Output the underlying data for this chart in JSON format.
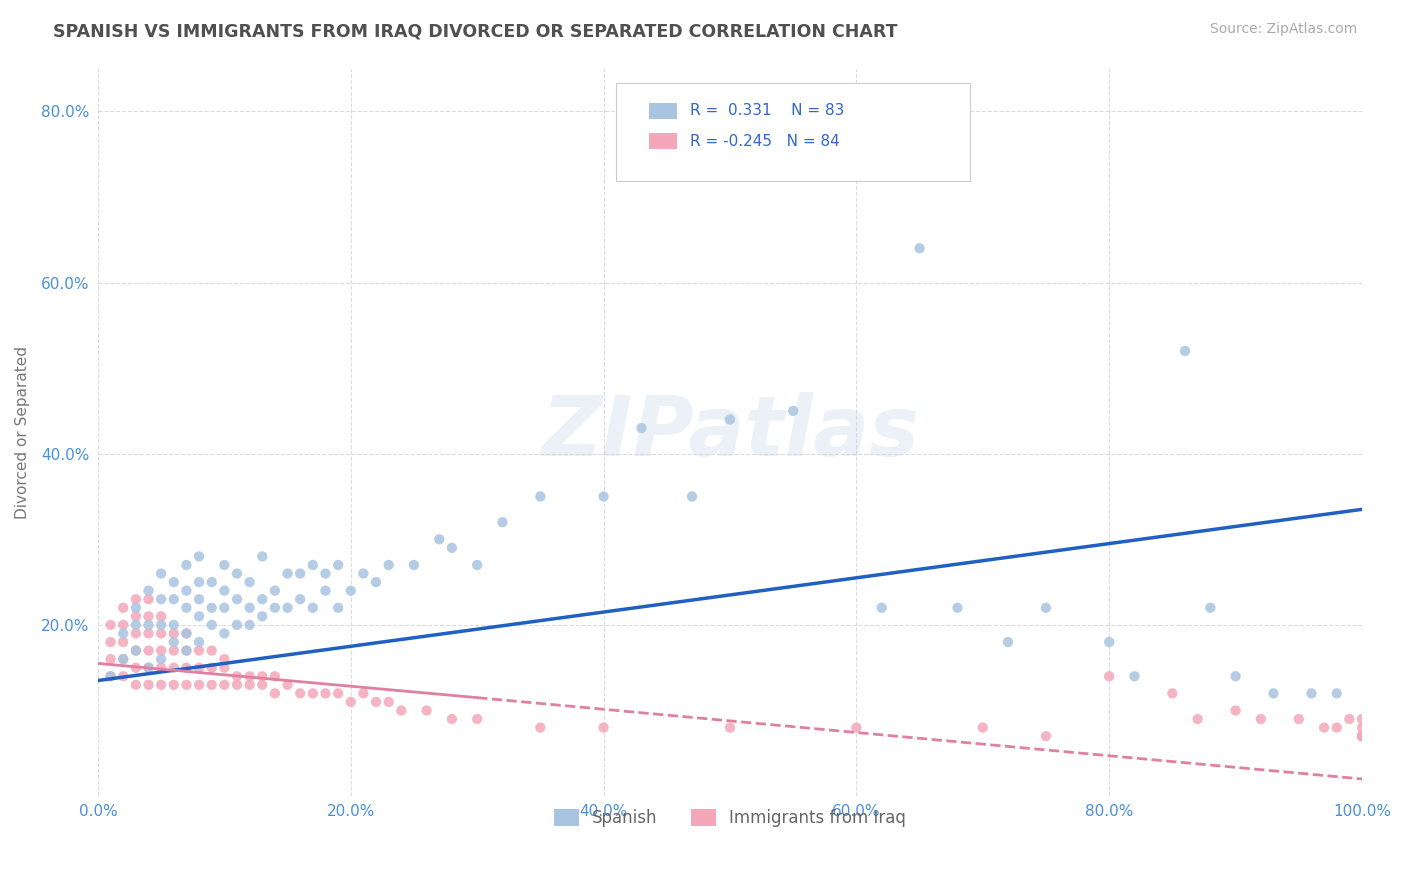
{
  "title": "SPANISH VS IMMIGRANTS FROM IRAQ DIVORCED OR SEPARATED CORRELATION CHART",
  "source": "Source: ZipAtlas.com",
  "xlabel": "",
  "ylabel": "Divorced or Separated",
  "xlim": [
    0.0,
    1.0
  ],
  "ylim": [
    0.0,
    0.85
  ],
  "xtick_labels": [
    "0.0%",
    "20.0%",
    "40.0%",
    "60.0%",
    "80.0%",
    "100.0%"
  ],
  "ytick_labels": [
    "",
    "20.0%",
    "40.0%",
    "60.0%",
    "80.0%"
  ],
  "ytick_vals": [
    0.0,
    0.2,
    0.4,
    0.6,
    0.8
  ],
  "xtick_vals": [
    0.0,
    0.2,
    0.4,
    0.6,
    0.8,
    1.0
  ],
  "r_spanish": 0.331,
  "n_spanish": 83,
  "r_iraq": -0.245,
  "n_iraq": 84,
  "spanish_color": "#a8c4e0",
  "iraq_color": "#f4a7b9",
  "line_spanish_color": "#2060c0",
  "line_iraq_color": "#e080a0",
  "background_color": "#ffffff",
  "grid_color": "#cccccc",
  "title_color": "#505050",
  "watermark": "ZIPatlas",
  "legend_label_spanish": "Spanish",
  "legend_label_iraq": "Immigrants from Iraq",
  "line_spanish_x0": 0.0,
  "line_spanish_y0": 0.135,
  "line_spanish_x1": 1.0,
  "line_spanish_y1": 0.335,
  "line_iraq_x0": 0.0,
  "line_iraq_y0": 0.155,
  "line_iraq_x1": 0.3,
  "line_iraq_y1": 0.115,
  "line_iraq_dash_x0": 0.3,
  "line_iraq_dash_y0": 0.115,
  "line_iraq_dash_x1": 1.0,
  "line_iraq_dash_y1": 0.02,
  "spanish_x": [
    0.01,
    0.02,
    0.02,
    0.03,
    0.03,
    0.03,
    0.04,
    0.04,
    0.04,
    0.05,
    0.05,
    0.05,
    0.05,
    0.06,
    0.06,
    0.06,
    0.06,
    0.07,
    0.07,
    0.07,
    0.07,
    0.07,
    0.08,
    0.08,
    0.08,
    0.08,
    0.08,
    0.09,
    0.09,
    0.09,
    0.1,
    0.1,
    0.1,
    0.1,
    0.11,
    0.11,
    0.11,
    0.12,
    0.12,
    0.12,
    0.13,
    0.13,
    0.13,
    0.14,
    0.14,
    0.15,
    0.15,
    0.16,
    0.16,
    0.17,
    0.17,
    0.18,
    0.18,
    0.19,
    0.19,
    0.2,
    0.21,
    0.22,
    0.23,
    0.25,
    0.27,
    0.28,
    0.3,
    0.32,
    0.35,
    0.4,
    0.43,
    0.47,
    0.5,
    0.55,
    0.62,
    0.65,
    0.68,
    0.72,
    0.75,
    0.8,
    0.82,
    0.86,
    0.88,
    0.9,
    0.93,
    0.96,
    0.98
  ],
  "spanish_y": [
    0.14,
    0.16,
    0.19,
    0.17,
    0.2,
    0.22,
    0.15,
    0.2,
    0.24,
    0.16,
    0.2,
    0.23,
    0.26,
    0.18,
    0.2,
    0.23,
    0.25,
    0.17,
    0.19,
    0.22,
    0.24,
    0.27,
    0.18,
    0.21,
    0.23,
    0.25,
    0.28,
    0.2,
    0.22,
    0.25,
    0.19,
    0.22,
    0.24,
    0.27,
    0.2,
    0.23,
    0.26,
    0.2,
    0.22,
    0.25,
    0.21,
    0.23,
    0.28,
    0.22,
    0.24,
    0.22,
    0.26,
    0.23,
    0.26,
    0.22,
    0.27,
    0.24,
    0.26,
    0.22,
    0.27,
    0.24,
    0.26,
    0.25,
    0.27,
    0.27,
    0.3,
    0.29,
    0.27,
    0.32,
    0.35,
    0.35,
    0.43,
    0.35,
    0.44,
    0.45,
    0.22,
    0.64,
    0.22,
    0.18,
    0.22,
    0.18,
    0.14,
    0.52,
    0.22,
    0.14,
    0.12,
    0.12,
    0.12
  ],
  "iraq_x": [
    0.01,
    0.01,
    0.01,
    0.01,
    0.02,
    0.02,
    0.02,
    0.02,
    0.02,
    0.03,
    0.03,
    0.03,
    0.03,
    0.03,
    0.03,
    0.04,
    0.04,
    0.04,
    0.04,
    0.04,
    0.04,
    0.05,
    0.05,
    0.05,
    0.05,
    0.05,
    0.06,
    0.06,
    0.06,
    0.06,
    0.07,
    0.07,
    0.07,
    0.07,
    0.08,
    0.08,
    0.08,
    0.09,
    0.09,
    0.09,
    0.1,
    0.1,
    0.1,
    0.11,
    0.11,
    0.12,
    0.12,
    0.13,
    0.13,
    0.14,
    0.14,
    0.15,
    0.16,
    0.17,
    0.18,
    0.19,
    0.2,
    0.21,
    0.22,
    0.23,
    0.24,
    0.26,
    0.28,
    0.3,
    0.35,
    0.4,
    0.5,
    0.6,
    0.7,
    0.75,
    0.8,
    0.85,
    0.87,
    0.9,
    0.92,
    0.95,
    0.97,
    0.98,
    0.99,
    1.0,
    1.0,
    1.0,
    1.0,
    1.0
  ],
  "iraq_y": [
    0.14,
    0.16,
    0.18,
    0.2,
    0.14,
    0.16,
    0.18,
    0.2,
    0.22,
    0.13,
    0.15,
    0.17,
    0.19,
    0.21,
    0.23,
    0.13,
    0.15,
    0.17,
    0.19,
    0.21,
    0.23,
    0.13,
    0.15,
    0.17,
    0.19,
    0.21,
    0.13,
    0.15,
    0.17,
    0.19,
    0.13,
    0.15,
    0.17,
    0.19,
    0.13,
    0.15,
    0.17,
    0.13,
    0.15,
    0.17,
    0.13,
    0.15,
    0.16,
    0.13,
    0.14,
    0.13,
    0.14,
    0.13,
    0.14,
    0.12,
    0.14,
    0.13,
    0.12,
    0.12,
    0.12,
    0.12,
    0.11,
    0.12,
    0.11,
    0.11,
    0.1,
    0.1,
    0.09,
    0.09,
    0.08,
    0.08,
    0.08,
    0.08,
    0.08,
    0.07,
    0.14,
    0.12,
    0.09,
    0.1,
    0.09,
    0.09,
    0.08,
    0.08,
    0.09,
    0.07,
    0.08,
    0.09,
    0.07,
    0.07
  ]
}
